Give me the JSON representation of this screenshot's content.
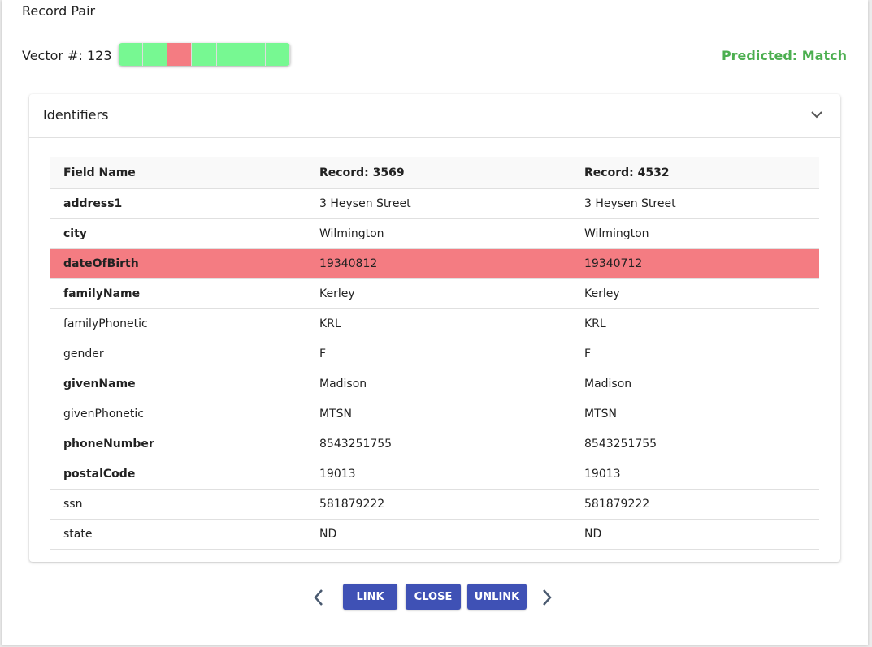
{
  "header": {
    "title": "Record Pair"
  },
  "vector": {
    "label": "Vector #: 123",
    "segment_colors": [
      "#77f892",
      "#77f892",
      "#f47c82",
      "#77f892",
      "#77f892",
      "#77f892",
      "#77f892"
    ]
  },
  "prediction": "Predicted: Match",
  "panel": {
    "title": "Identifiers"
  },
  "table": {
    "columns": [
      "Field Name",
      "Record: 3569",
      "Record: 4532"
    ],
    "rows": [
      {
        "cells": [
          "address1",
          "3 Heysen Street",
          "3 Heysen Street"
        ],
        "bold": true,
        "highlight": false
      },
      {
        "cells": [
          "city",
          "Wilmington",
          "Wilmington"
        ],
        "bold": true,
        "highlight": false
      },
      {
        "cells": [
          "dateOfBirth",
          "19340812",
          "19340712"
        ],
        "bold": true,
        "highlight": true
      },
      {
        "cells": [
          "familyName",
          "Kerley",
          "Kerley"
        ],
        "bold": true,
        "highlight": false
      },
      {
        "cells": [
          "familyPhonetic",
          "KRL",
          "KRL"
        ],
        "bold": false,
        "highlight": false
      },
      {
        "cells": [
          "gender",
          "F",
          "F"
        ],
        "bold": false,
        "highlight": false
      },
      {
        "cells": [
          "givenName",
          "Madison",
          "Madison"
        ],
        "bold": true,
        "highlight": false
      },
      {
        "cells": [
          "givenPhonetic",
          "MTSN",
          "MTSN"
        ],
        "bold": false,
        "highlight": false
      },
      {
        "cells": [
          "phoneNumber",
          "8543251755",
          "8543251755"
        ],
        "bold": true,
        "highlight": false
      },
      {
        "cells": [
          "postalCode",
          "19013",
          "19013"
        ],
        "bold": true,
        "highlight": false
      },
      {
        "cells": [
          "ssn",
          "581879222",
          "581879222"
        ],
        "bold": false,
        "highlight": false
      },
      {
        "cells": [
          "state",
          "ND",
          "ND"
        ],
        "bold": false,
        "highlight": false
      }
    ]
  },
  "buttons": [
    "LINK",
    "CLOSE",
    "UNLINK"
  ]
}
